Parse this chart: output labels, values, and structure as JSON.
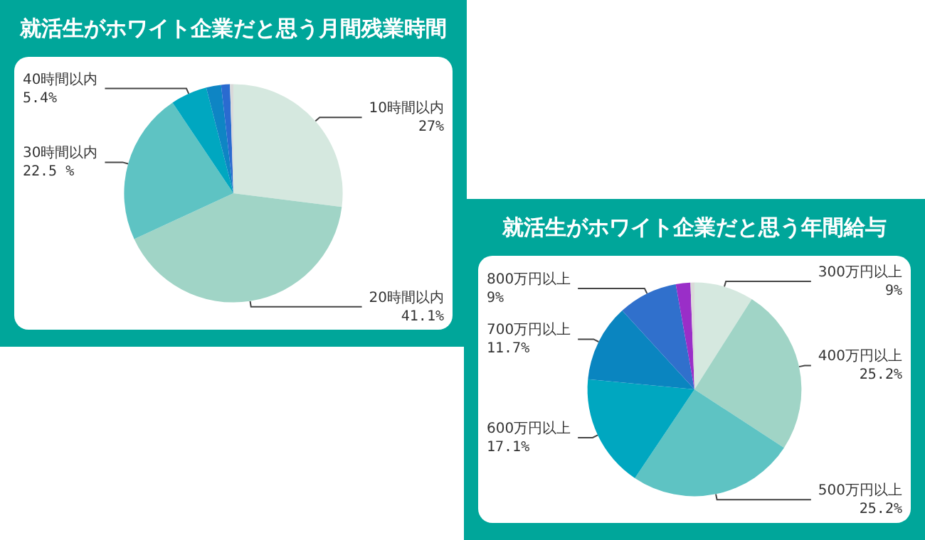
{
  "chart_data": [
    {
      "type": "pie",
      "title": "就活生がホワイト企業だと思う月間残業時間",
      "categories": [
        "10時間以内",
        "20時間以内",
        "30時間以内",
        "40時間以内",
        null,
        null,
        null
      ],
      "values": [
        27,
        41.1,
        22.5,
        5.4,
        2.2,
        1.3,
        0.5
      ],
      "value_labels": [
        "27%",
        "41.1%",
        "22.5 %",
        "5.4%",
        null,
        null,
        null
      ],
      "colors": [
        "#d5e8df",
        "#a0d4c6",
        "#5ec3c3",
        "#00a7c0",
        "#0e85c4",
        "#2a6bd0",
        "#d9d9d9"
      ]
    },
    {
      "type": "pie",
      "title": "就活生がホワイト企業だと思う年間給与",
      "categories": [
        "300万円以上",
        "400万円以上",
        "500万円以上",
        "600万円以上",
        "700万円以上",
        "800万円以上",
        null,
        null
      ],
      "values": [
        9,
        25.2,
        25.2,
        17.1,
        11.7,
        9,
        2.2,
        0.6
      ],
      "value_labels": [
        "9%",
        "25.2%",
        "25.2%",
        "17.1%",
        "11.7%",
        "9%",
        null,
        null
      ],
      "colors": [
        "#d5e8df",
        "#a0d4c6",
        "#5ec3c3",
        "#00a7c0",
        "#0a85c0",
        "#3070cc",
        "#9a2ec8",
        "#d9d9d9"
      ]
    }
  ]
}
